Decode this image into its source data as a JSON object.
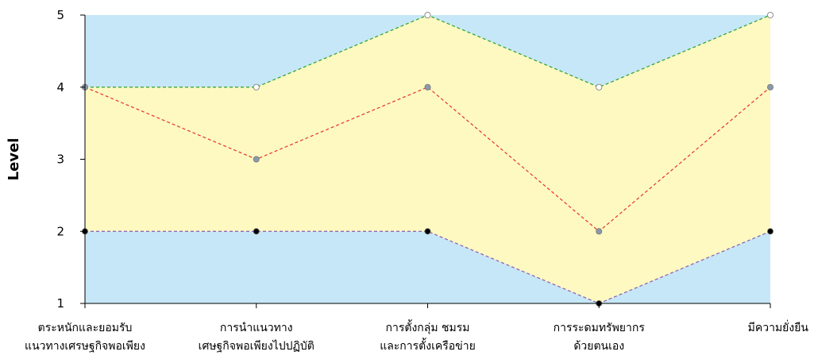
{
  "chart_data": {
    "type": "line",
    "title": "",
    "xlabel": "",
    "ylabel": "Level",
    "ylim": [
      1,
      5
    ],
    "yticks": [
      1,
      2,
      3,
      4,
      5
    ],
    "grid": false,
    "categories": [
      [
        "ตระหนักและยอมรับ",
        "แนวทางเศรษฐกิจพอเพียง"
      ],
      [
        "การนำแนวทาง",
        "เศษฐกิจพอเพียงไปปฏิบัติ"
      ],
      [
        "การตั้งกลุ่ม ชมรม",
        "และการตั้งเครือข่าย"
      ],
      [
        "การระดมทรัพยากร",
        "ด้วยตนเอง"
      ],
      [
        "มีความยั่งยืน"
      ]
    ],
    "series": [
      {
        "values": [
          4,
          4,
          5,
          4,
          5
        ],
        "color": "#2ca02c",
        "marker": "#ffffff"
      },
      {
        "values": [
          4,
          3,
          4,
          2,
          4
        ],
        "color": "#e8322a",
        "marker": "#8a9aaa"
      },
      {
        "values": [
          2,
          2,
          2,
          1,
          2
        ],
        "color": "#8a5ab4",
        "marker": "#000000"
      }
    ],
    "band_color": "#fdf9c1",
    "background_color": "#c6e7f7"
  }
}
